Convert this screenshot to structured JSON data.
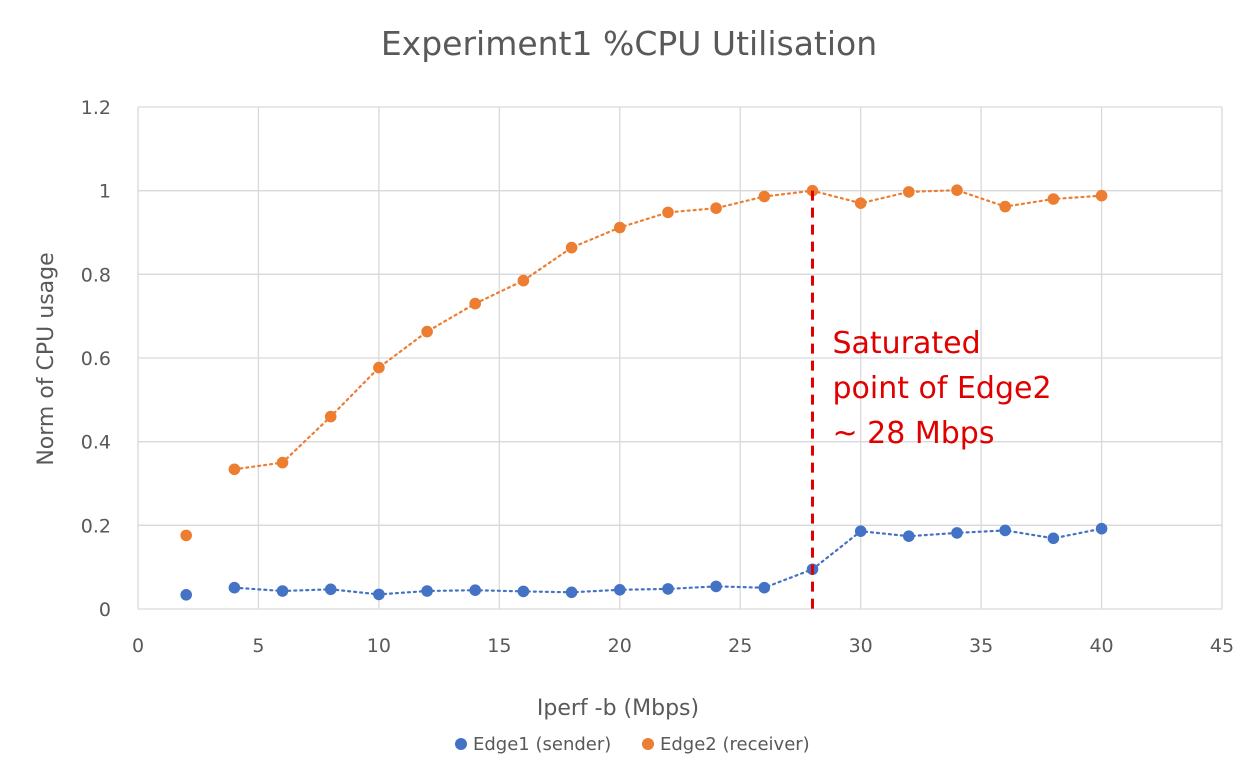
{
  "chart_data": {
    "type": "scatter",
    "title": "Experiment1 %CPU Utilisation",
    "xlabel": "Iperf -b (Mbps)",
    "ylabel": "Norm of CPU usage",
    "xlim": [
      0,
      45
    ],
    "ylim": [
      0,
      1.2
    ],
    "x_ticks": [
      "0",
      "5",
      "10",
      "15",
      "20",
      "25",
      "30",
      "35",
      "40",
      "45"
    ],
    "y_ticks": [
      "0",
      "0.2",
      "0.4",
      "0.6",
      "0.8",
      "1",
      "1.2"
    ],
    "x_tick_values": [
      0,
      5,
      10,
      15,
      20,
      25,
      30,
      35,
      40,
      45
    ],
    "y_tick_values": [
      0,
      0.2,
      0.4,
      0.6,
      0.8,
      1,
      1.2
    ],
    "grid": true,
    "legend_position": "bottom",
    "series": [
      {
        "name": "Edge1 (sender)",
        "color": "#4472C4",
        "x": [
          2,
          4,
          6,
          8,
          10,
          12,
          14,
          16,
          18,
          20,
          22,
          24,
          26,
          28,
          30,
          32,
          34,
          36,
          38,
          40
        ],
        "y": [
          0.034,
          0.051,
          0.043,
          0.047,
          0.035,
          0.043,
          0.045,
          0.042,
          0.04,
          0.046,
          0.048,
          0.054,
          0.051,
          0.095,
          0.186,
          0.174,
          0.182,
          0.188,
          0.169,
          0.192
        ],
        "connected_from_index": 1,
        "line_style": "dotted"
      },
      {
        "name": "Edge2 (receiver)",
        "color": "#ED7D31",
        "x": [
          2,
          4,
          6,
          8,
          10,
          12,
          14,
          16,
          18,
          20,
          22,
          24,
          26,
          28,
          30,
          32,
          34,
          36,
          38,
          40
        ],
        "y": [
          0.176,
          0.334,
          0.35,
          0.46,
          0.577,
          0.663,
          0.73,
          0.785,
          0.864,
          0.912,
          0.948,
          0.958,
          0.986,
          1.0,
          0.97,
          0.997,
          1.001,
          0.962,
          0.98,
          0.988
        ],
        "connected_from_index": 1,
        "line_style": "dotted"
      }
    ],
    "annotation": {
      "x": 28,
      "lines": [
        "Saturated",
        "point of Edge2",
        "~ 28 Mbps"
      ],
      "color": "#E00000"
    }
  }
}
